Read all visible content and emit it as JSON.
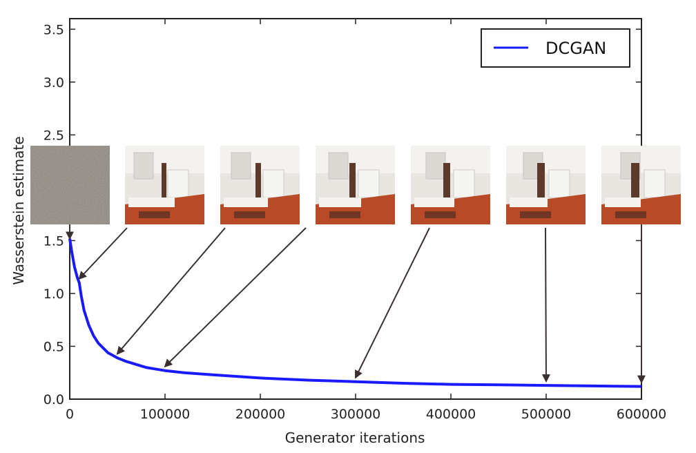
{
  "chart_data": {
    "type": "line",
    "title": "",
    "xlabel": "Generator iterations",
    "ylabel": "Wasserstein estimate",
    "xlim": [
      0,
      600000
    ],
    "ylim": [
      0,
      3.6
    ],
    "xticks": [
      0,
      100000,
      200000,
      300000,
      400000,
      500000,
      600000
    ],
    "xtick_labels": [
      "0",
      "100000",
      "200000",
      "300000",
      "400000",
      "500000",
      "600000"
    ],
    "yticks": [
      0.0,
      0.5,
      1.0,
      1.5,
      2.0,
      2.5,
      3.0,
      3.5
    ],
    "ytick_labels": [
      "0.0",
      "0.5",
      "1.0",
      "1.5",
      "2.0",
      "2.5",
      "3.0",
      "3.5"
    ],
    "grid": false,
    "legend": {
      "position": "top-right",
      "entries": [
        "DCGAN"
      ]
    },
    "series": [
      {
        "name": "DCGAN",
        "color": "#1a1aff",
        "x": [
          0,
          2000,
          5000,
          8000,
          10000,
          12000,
          15000,
          20000,
          25000,
          30000,
          40000,
          50000,
          60000,
          80000,
          100000,
          120000,
          150000,
          200000,
          250000,
          300000,
          350000,
          400000,
          450000,
          500000,
          550000,
          600000
        ],
        "y": [
          1.52,
          1.4,
          1.25,
          1.15,
          1.1,
          0.98,
          0.84,
          0.7,
          0.6,
          0.53,
          0.44,
          0.39,
          0.355,
          0.3,
          0.27,
          0.25,
          0.23,
          0.2,
          0.18,
          0.165,
          0.15,
          0.14,
          0.135,
          0.13,
          0.125,
          0.12
        ]
      }
    ],
    "annotations": [
      {
        "label": "sample at iteration 0",
        "x": 0
      },
      {
        "label": "sample at iteration 10000",
        "x": 10000
      },
      {
        "label": "sample at iteration 50000",
        "x": 50000
      },
      {
        "label": "sample at iteration 100000",
        "x": 100000
      },
      {
        "label": "sample at iteration 300000",
        "x": 300000
      },
      {
        "label": "sample at iteration 500000",
        "x": 500000
      },
      {
        "label": "sample at iteration 600000",
        "x": 600000
      }
    ]
  }
}
